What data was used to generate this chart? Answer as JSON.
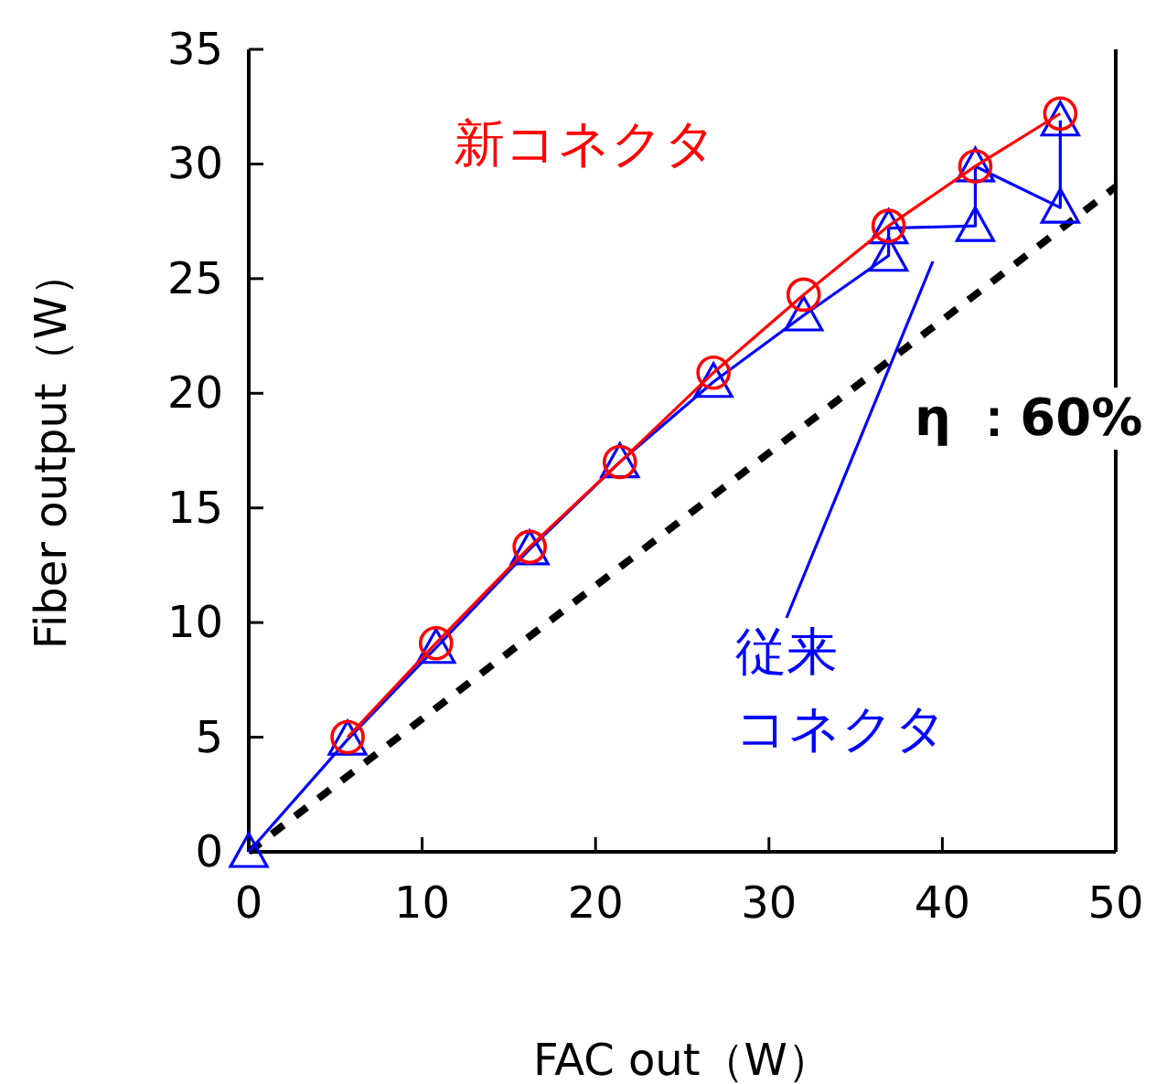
{
  "chart_data": {
    "type": "line",
    "xlabel": "FAC out（W）",
    "ylabel": "Fiber output（W）",
    "xlim": [
      0,
      50
    ],
    "ylim": [
      0,
      35
    ],
    "xticks": [
      0,
      10,
      20,
      30,
      40,
      50
    ],
    "yticks": [
      0,
      5,
      10,
      15,
      20,
      25,
      30,
      35
    ],
    "grid": false,
    "series": [
      {
        "color": "#000000",
        "line_style": "dashed",
        "marker": "none",
        "x": [
          0,
          50
        ],
        "values": [
          0,
          29
        ]
      },
      {
        "color": "#0000ff",
        "line_style": "solid",
        "marker": "triangle",
        "x": [
          0,
          5.7,
          10.8,
          16.2,
          21.4,
          26.8,
          32.0,
          36.9,
          36.9,
          41.9,
          41.9,
          46.8,
          46.8
        ],
        "values": [
          0,
          4.9,
          8.9,
          13.2,
          17.0,
          20.5,
          23.4,
          26.0,
          27.2,
          27.3,
          29.9,
          28.1,
          31.9
        ]
      },
      {
        "color": "#ff0000",
        "line_style": "solid",
        "marker": "circle",
        "x": [
          5.7,
          10.8,
          16.2,
          21.4,
          26.8,
          32.0,
          36.9,
          41.9,
          46.8
        ],
        "values": [
          5.0,
          9.1,
          13.3,
          17.0,
          20.9,
          24.3,
          27.3,
          29.9,
          32.2
        ]
      }
    ],
    "annotations": [
      "新コネクタ",
      "従来コネクタ",
      "η ：60%"
    ]
  }
}
